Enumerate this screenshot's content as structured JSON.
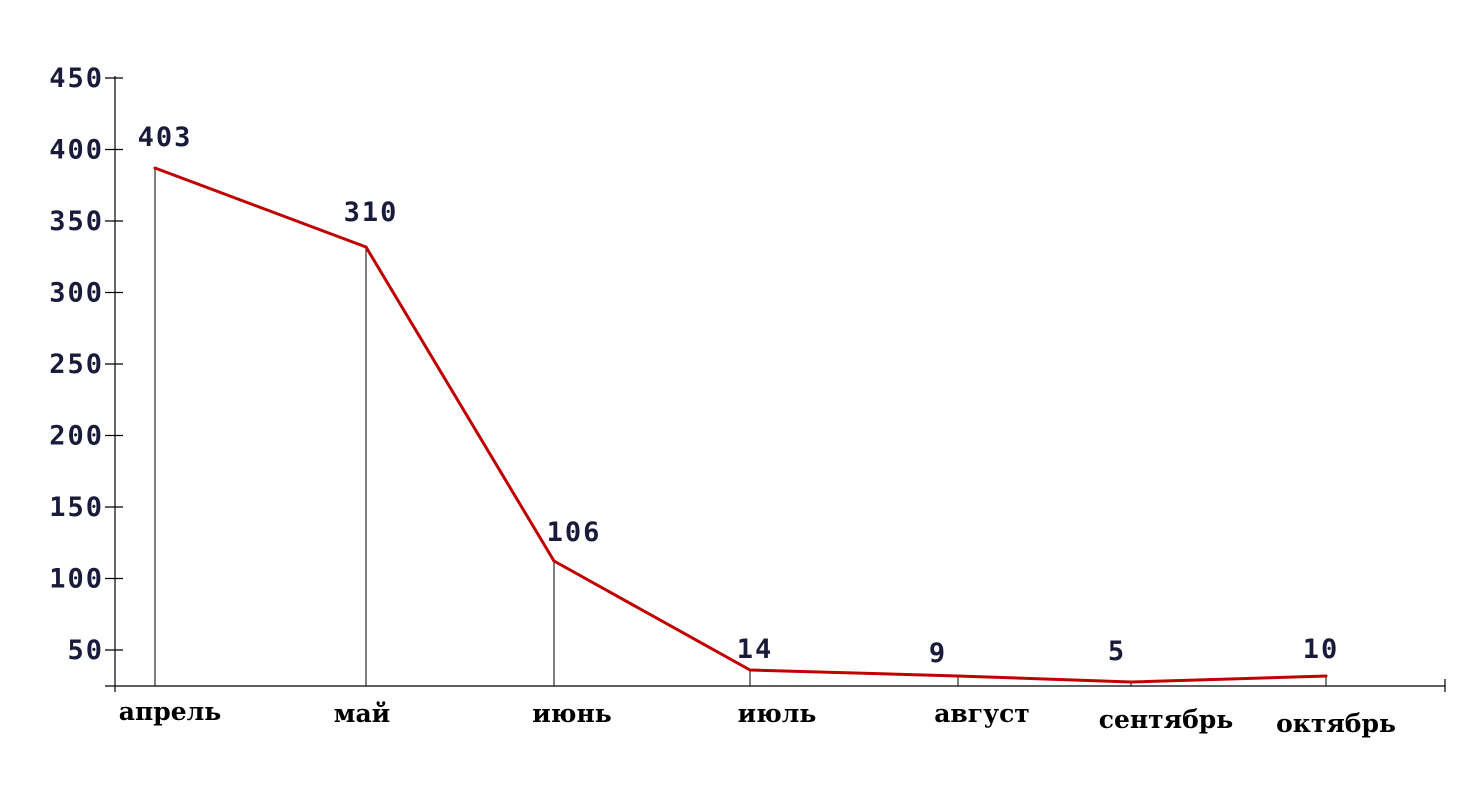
{
  "chart_data": {
    "type": "line",
    "categories": [
      "апрель",
      "май",
      "июнь",
      "июль",
      "август",
      "сентябрь",
      "октябрь"
    ],
    "values": [
      403,
      310,
      106,
      14,
      9,
      5,
      10
    ],
    "value_labels": [
      "403",
      "310",
      "106",
      "14",
      "9",
      "5",
      "10"
    ],
    "y_ticks": [
      "50",
      "100",
      "150",
      "200",
      "250",
      "300",
      "350",
      "400",
      "450"
    ],
    "title": "",
    "xlabel": "",
    "ylabel": "",
    "ylim": [
      0,
      450
    ],
    "grid": false,
    "legend": "none",
    "colors": {
      "line": "#c00000",
      "text": "#1a1a3a",
      "axis": "#000000"
    }
  }
}
